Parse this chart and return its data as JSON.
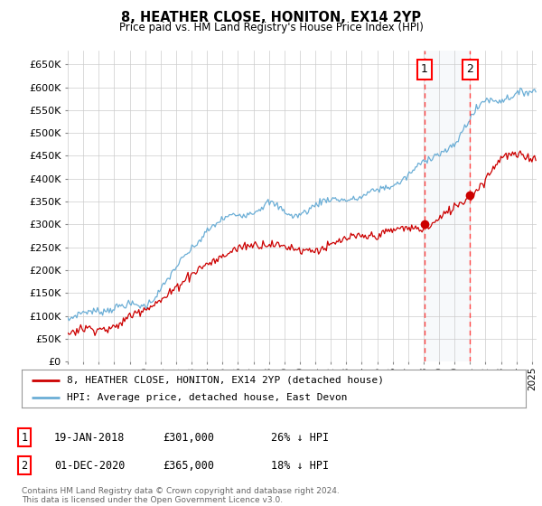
{
  "title": "8, HEATHER CLOSE, HONITON, EX14 2YP",
  "subtitle": "Price paid vs. HM Land Registry's House Price Index (HPI)",
  "ylabel_ticks": [
    "£0",
    "£50K",
    "£100K",
    "£150K",
    "£200K",
    "£250K",
    "£300K",
    "£350K",
    "£400K",
    "£450K",
    "£500K",
    "£550K",
    "£600K",
    "£650K"
  ],
  "ytick_values": [
    0,
    50000,
    100000,
    150000,
    200000,
    250000,
    300000,
    350000,
    400000,
    450000,
    500000,
    550000,
    600000,
    650000
  ],
  "ylim": [
    0,
    680000
  ],
  "xlim_start": 1995.0,
  "xlim_end": 2025.3,
  "hpi_color": "#6baed6",
  "price_color": "#cc0000",
  "dashed_color": "#ff4444",
  "shade_color": "#dce6f1",
  "sale1_year": 2018.05,
  "sale1_price": 301000,
  "sale2_year": 2021.0,
  "sale2_price": 365000,
  "legend_line1": "8, HEATHER CLOSE, HONITON, EX14 2YP (detached house)",
  "legend_line2": "HPI: Average price, detached house, East Devon",
  "table_row1": [
    "1",
    "19-JAN-2018",
    "£301,000",
    "26% ↓ HPI"
  ],
  "table_row2": [
    "2",
    "01-DEC-2020",
    "£365,000",
    "18% ↓ HPI"
  ],
  "footer": "Contains HM Land Registry data © Crown copyright and database right 2024.\nThis data is licensed under the Open Government Licence v3.0.",
  "background_color": "#ffffff",
  "grid_color": "#cccccc"
}
